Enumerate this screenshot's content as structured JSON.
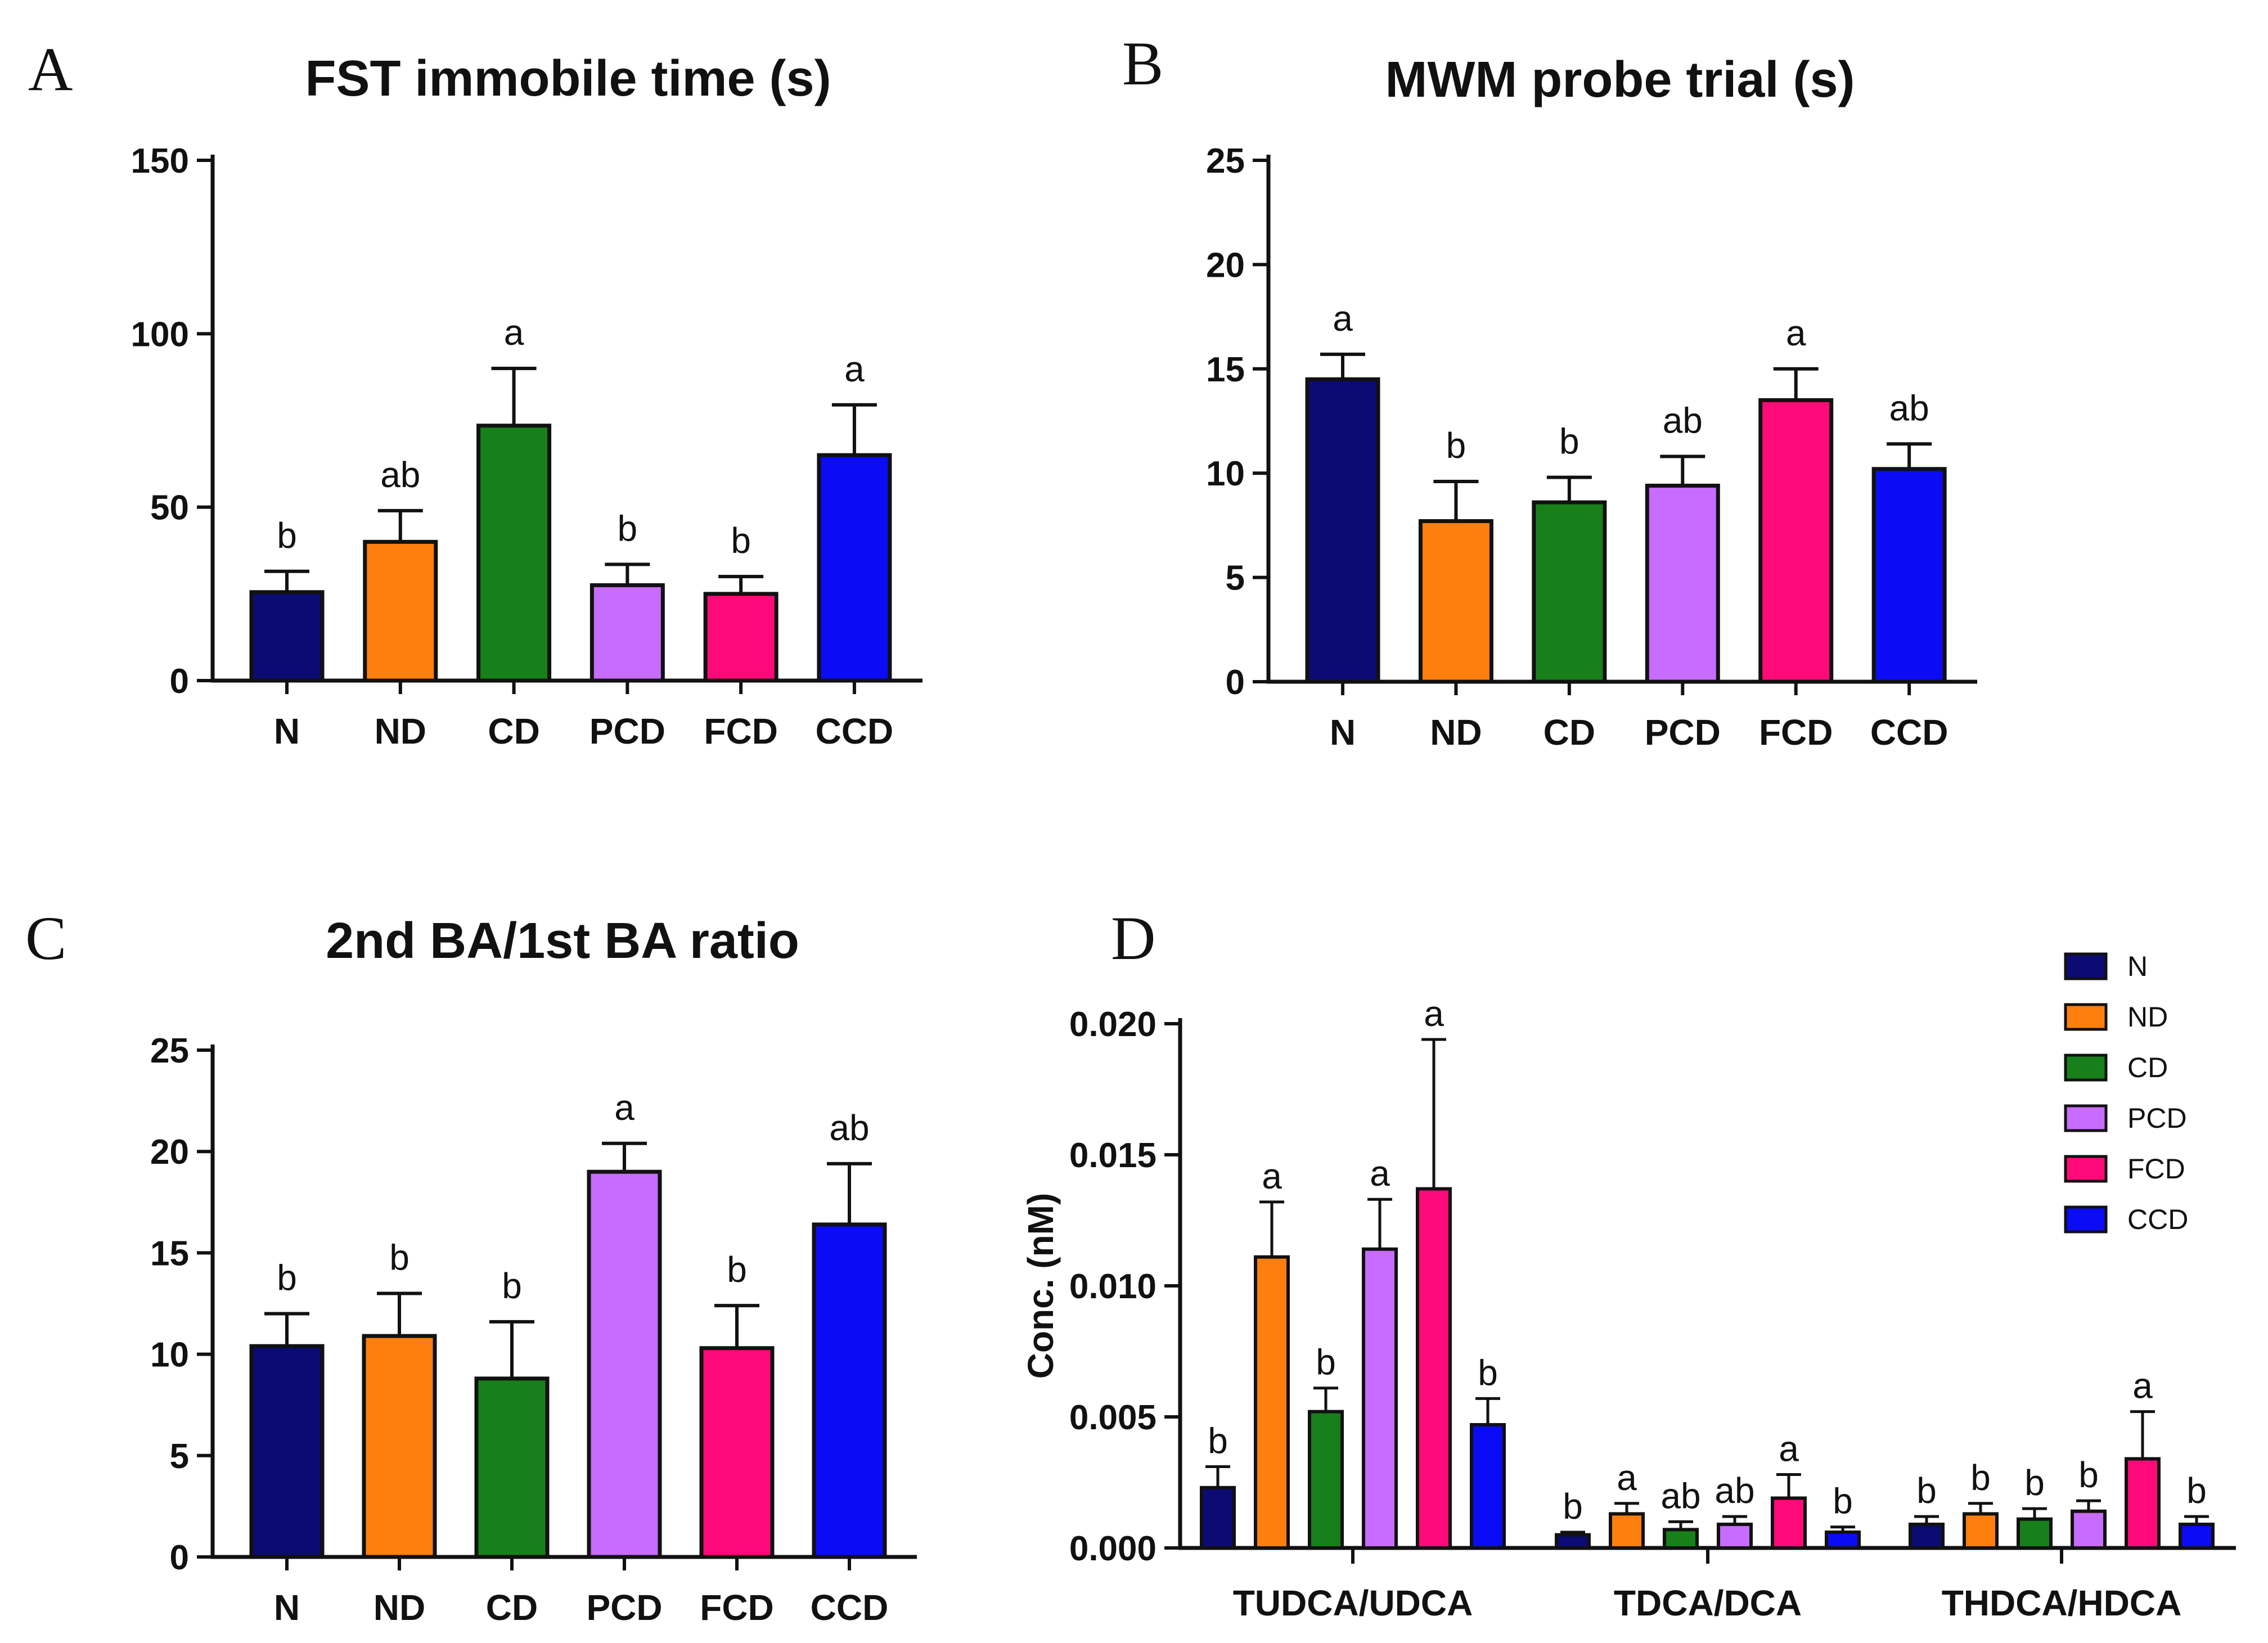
{
  "figure": {
    "colors": {
      "N": "#0b0b73",
      "ND": "#ff7f0e",
      "CD": "#17801a",
      "PCD": "#c86bff",
      "FCD": "#ff0a78",
      "CCD": "#0b0bf5",
      "axis": "#111111"
    },
    "groups": [
      "N",
      "ND",
      "CD",
      "PCD",
      "FCD",
      "CCD"
    ]
  },
  "chart_data": [
    {
      "panel": "A",
      "type": "bar",
      "title": "FST immobile time (s)",
      "categories": [
        "N",
        "ND",
        "CD",
        "PCD",
        "FCD",
        "CCD"
      ],
      "values": [
        25.5,
        40,
        73.5,
        27.5,
        25,
        65
      ],
      "errors": [
        6,
        9,
        16.5,
        6,
        5,
        14.5
      ],
      "significance": [
        "b",
        "ab",
        "a",
        "b",
        "b",
        "a"
      ],
      "ylim": [
        0,
        150
      ],
      "yticks": [
        "0",
        "50",
        "100",
        "150"
      ],
      "xlabel": "",
      "ylabel": ""
    },
    {
      "panel": "B",
      "type": "bar",
      "title": "MWM probe trial (s)",
      "categories": [
        "N",
        "ND",
        "CD",
        "PCD",
        "FCD",
        "CCD"
      ],
      "values": [
        14.5,
        7.7,
        8.6,
        9.4,
        13.5,
        10.2
      ],
      "errors": [
        1.2,
        1.9,
        1.2,
        1.4,
        1.5,
        1.2
      ],
      "significance": [
        "a",
        "b",
        "b",
        "ab",
        "a",
        "ab"
      ],
      "ylim": [
        0,
        25
      ],
      "yticks": [
        "0",
        "5",
        "10",
        "15",
        "20",
        "25"
      ],
      "xlabel": "",
      "ylabel": ""
    },
    {
      "panel": "C",
      "type": "bar",
      "title": "2nd BA/1st BA ratio",
      "categories": [
        "N",
        "ND",
        "CD",
        "PCD",
        "FCD",
        "CCD"
      ],
      "values": [
        10.4,
        10.9,
        8.8,
        19,
        10.3,
        16.4
      ],
      "errors": [
        1.6,
        2.1,
        2.8,
        1.4,
        2.1,
        3
      ],
      "significance": [
        "b",
        "b",
        "b",
        "a",
        "b",
        "ab"
      ],
      "ylim": [
        0,
        25
      ],
      "yticks": [
        "0",
        "5",
        "10",
        "15",
        "20",
        "25"
      ],
      "xlabel": "",
      "ylabel": ""
    },
    {
      "panel": "D",
      "type": "bar",
      "title": "",
      "ylabel": "Conc. (nM)",
      "xlabel": "",
      "ylim": [
        0,
        0.02
      ],
      "yticks": [
        "0.000",
        "0.005",
        "0.010",
        "0.015",
        "0.020"
      ],
      "categories": [
        "TUDCA/UDCA",
        "TDCA/DCA",
        "THDCA/HDCA"
      ],
      "legend_position": "top-right",
      "series": [
        {
          "name": "N",
          "values": [
            0.0023,
            0.0005,
            0.0009
          ],
          "errors": [
            0.0008,
            0.0001,
            0.0003
          ],
          "significance": [
            "b",
            "b",
            "b"
          ]
        },
        {
          "name": "ND",
          "values": [
            0.0111,
            0.0013,
            0.0013
          ],
          "errors": [
            0.0021,
            0.0004,
            0.0004
          ],
          "significance": [
            "a",
            "a",
            "b"
          ]
        },
        {
          "name": "CD",
          "values": [
            0.0052,
            0.0007,
            0.0011
          ],
          "errors": [
            0.0009,
            0.0003,
            0.0004
          ],
          "significance": [
            "b",
            "ab",
            "b"
          ]
        },
        {
          "name": "PCD",
          "values": [
            0.0114,
            0.0009,
            0.0014
          ],
          "errors": [
            0.0019,
            0.0003,
            0.0004
          ],
          "significance": [
            "a",
            "ab",
            "b"
          ]
        },
        {
          "name": "FCD",
          "values": [
            0.0137,
            0.0019,
            0.0034
          ],
          "errors": [
            0.0057,
            0.0009,
            0.0018
          ],
          "significance": [
            "a",
            "a",
            "a"
          ]
        },
        {
          "name": "CCD",
          "values": [
            0.0047,
            0.0006,
            0.0009
          ],
          "errors": [
            0.001,
            0.0002,
            0.0003
          ],
          "significance": [
            "b",
            "b",
            "b"
          ]
        }
      ]
    }
  ]
}
